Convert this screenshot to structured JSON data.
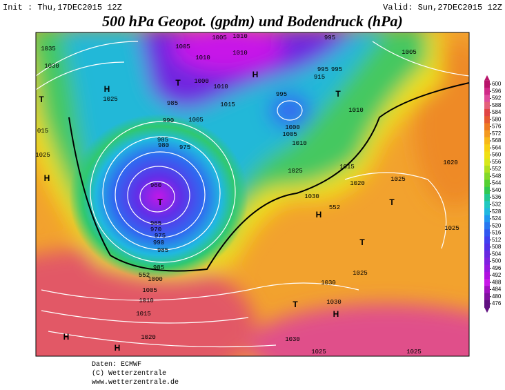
{
  "header": {
    "init": "Init : Thu,17DEC2015 12Z",
    "valid": "Valid: Sun,27DEC2015 12Z",
    "title": "500 hPa Geopot. (gpdm) und Bodendruck (hPa)"
  },
  "map": {
    "labels": [
      "1035",
      "1030",
      "1025",
      "015",
      "1025",
      "1005",
      "1010",
      "1010",
      "1010",
      "1005",
      "995",
      "1005",
      "995",
      "995",
      "915",
      "1000",
      "1010",
      "1015",
      "985",
      "990",
      "1005",
      "995",
      "1000",
      "1005",
      "1010",
      "1010",
      "1015",
      "1020",
      "1025",
      "1030",
      "1025",
      "1020",
      "1025",
      "1025",
      "980",
      "975",
      "985",
      "960",
      "965",
      "970",
      "975",
      "990",
      "985",
      "985",
      "1000",
      "1005",
      "1010",
      "1015",
      "1020",
      "1030",
      "1030",
      "1030",
      "1025",
      "1025",
      "552",
      "552"
    ],
    "centers": [
      "H",
      "H",
      "T",
      "T",
      "H",
      "T",
      "H",
      "T",
      "T",
      "H",
      "H",
      "T",
      "H",
      "T"
    ]
  },
  "colorbar": {
    "ticks": [
      600,
      596,
      592,
      588,
      584,
      580,
      576,
      572,
      568,
      564,
      560,
      556,
      552,
      548,
      544,
      540,
      536,
      532,
      528,
      524,
      520,
      516,
      512,
      508,
      504,
      500,
      496,
      492,
      488,
      484,
      480,
      476
    ],
    "colors": [
      "#b8146a",
      "#d02a88",
      "#de4c9c",
      "#e4607a",
      "#e04444",
      "#e65a30",
      "#ee7a22",
      "#f49a20",
      "#f8b818",
      "#f8d012",
      "#f0e014",
      "#d8e81a",
      "#b0e020",
      "#84d828",
      "#54d032",
      "#30c852",
      "#22c890",
      "#20c8c0",
      "#20b8e0",
      "#2098f0",
      "#2878f0",
      "#3058f0",
      "#4040f0",
      "#5030e8",
      "#6828e0",
      "#8020e0",
      "#9818e0",
      "#b010e0",
      "#c818e8",
      "#a010c0",
      "#8010a0",
      "#601080"
    ]
  },
  "footer": {
    "source": "Daten: ECMWF",
    "copyright": "(C) Wetterzentrale",
    "url": "www.wetterzentrale.de"
  }
}
